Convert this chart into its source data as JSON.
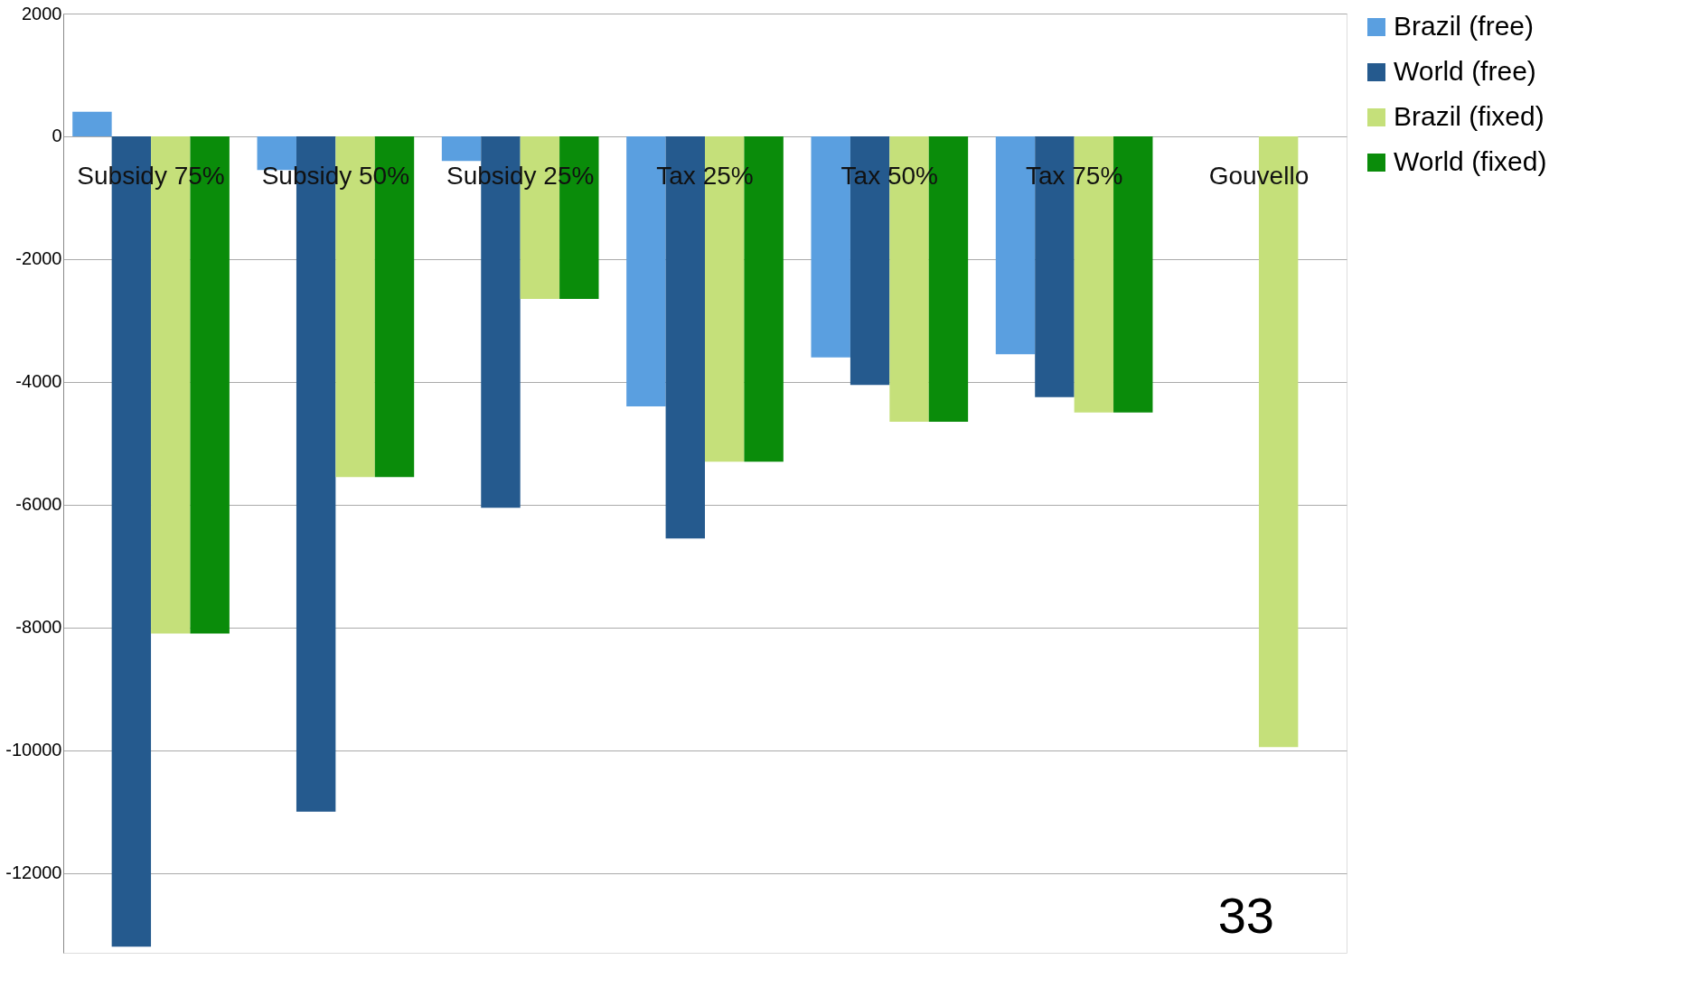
{
  "chart_data": {
    "type": "bar",
    "categories": [
      "Subsidy 75%",
      "Subsidy 50%",
      "Subsidy 25%",
      "Tax 25%",
      "Tax 50%",
      "Tax 75%",
      "Gouvello"
    ],
    "series": [
      {
        "name": "Brazil (free)",
        "color": "#5a9fe0",
        "values": [
          400,
          -550,
          -400,
          -4400,
          -3600,
          -3550,
          null
        ]
      },
      {
        "name": "World (free)",
        "color": "#255a8e",
        "values": [
          -13200,
          -11000,
          -6050,
          -6550,
          -4050,
          -4250,
          null
        ]
      },
      {
        "name": "Brazil (fixed)",
        "color": "#c5e07a",
        "values": [
          -8100,
          -5550,
          -2650,
          -5300,
          -4650,
          -4500,
          -9950
        ]
      },
      {
        "name": "World (fixed)",
        "color": "#0a8c0a",
        "values": [
          -8100,
          -5550,
          -2650,
          -5300,
          -4650,
          -4500,
          null
        ]
      }
    ],
    "ylim": [
      -13300,
      2000
    ],
    "yticks": [
      2000,
      0,
      -2000,
      -4000,
      -6000,
      -8000,
      -10000,
      -12000
    ],
    "grid": "y",
    "legend": "right",
    "annotations": [
      "33"
    ]
  }
}
